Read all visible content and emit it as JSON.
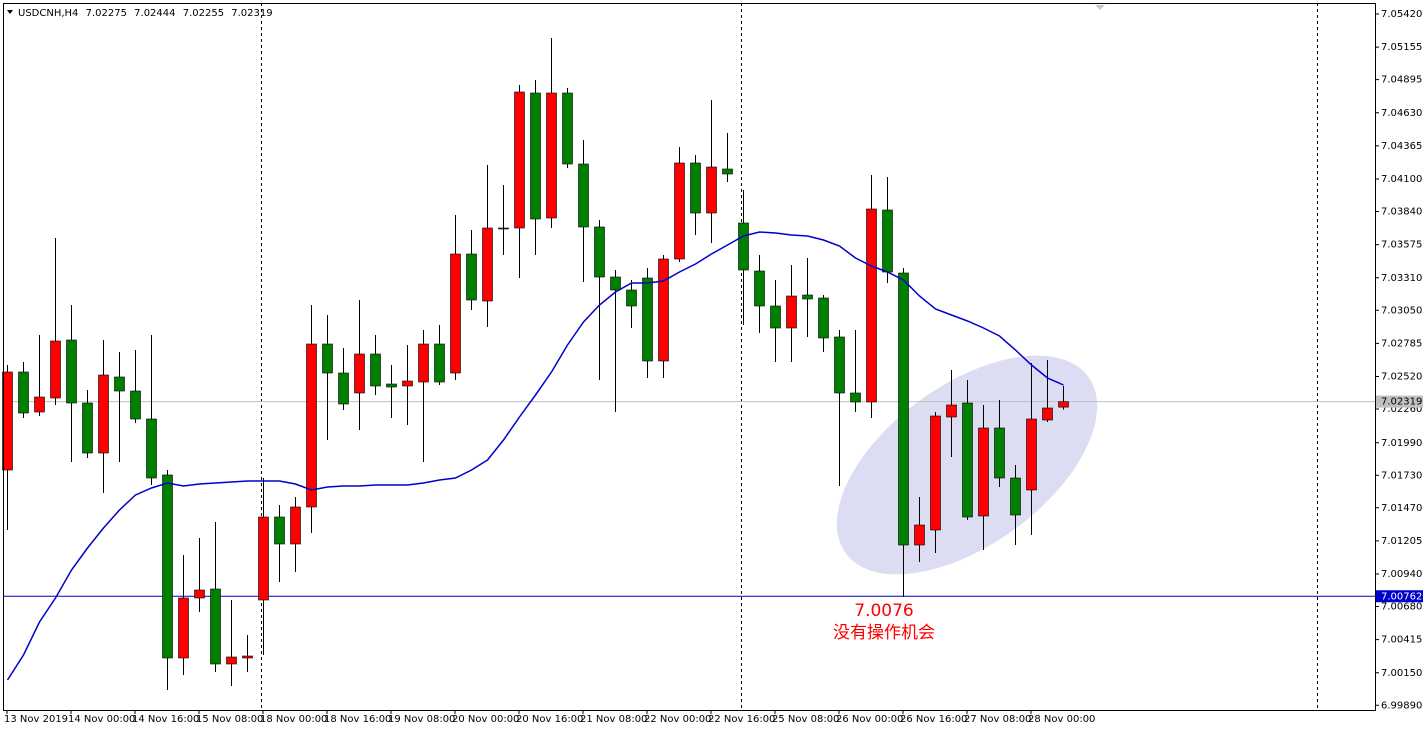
{
  "chart_data": {
    "type": "candlestick",
    "title": "USDCNH,H4",
    "categories": [
      "13 Nov 2019",
      null,
      null,
      null,
      "14 Nov 00:00",
      null,
      null,
      null,
      "14 Nov 16:00",
      null,
      null,
      null,
      "15 Nov 08:00",
      null,
      null,
      null,
      "18 Nov 00:00",
      null,
      null,
      null,
      "18 Nov 16:00",
      null,
      null,
      null,
      "19 Nov 08:00",
      null,
      null,
      null,
      "20 Nov 00:00",
      null,
      null,
      null,
      "20 Nov 16:00",
      null,
      null,
      null,
      "21 Nov 08:00",
      null,
      null,
      null,
      "22 Nov 00:00",
      null,
      null,
      null,
      "22 Nov 16:00",
      null,
      null,
      null,
      "25 Nov 08:00",
      null,
      null,
      null,
      "26 Nov 00:00",
      null,
      null,
      null,
      "26 Nov 16:00",
      null,
      null,
      null,
      "27 Nov 08:00",
      null,
      null,
      null,
      "28 Nov 00:00",
      null,
      null
    ],
    "open": [
      7.01772,
      7.02556,
      7.02236,
      7.02348,
      7.02812,
      7.02308,
      7.01908,
      7.02516,
      7.02404,
      7.0218,
      7.01732,
      7.00268,
      7.00748,
      7.0082,
      7.0022,
      7.00268,
      7.00732,
      7.01396,
      7.0118,
      7.01476,
      7.0278,
      7.02548,
      7.02388,
      7.027,
      7.0246,
      7.02444,
      7.02476,
      7.0278,
      7.02548,
      7.035,
      7.03124,
      7.03708,
      7.03708,
      7.04788,
      7.03788,
      7.04788,
      7.0422,
      7.03716,
      7.03316,
      7.03212,
      7.03308,
      7.02644,
      7.0346,
      7.04228,
      7.03828,
      7.0418,
      7.03748,
      7.03364,
      7.03084,
      7.02908,
      7.03172,
      7.03148,
      7.02836,
      7.02388,
      7.02316,
      7.03852,
      7.03348,
      7.01172,
      7.01292,
      7.02196,
      7.02308,
      7.01404,
      7.02108,
      7.01708,
      7.01612,
      7.02172,
      7.02275
    ],
    "high": [
      7.02612,
      7.02636,
      7.02852,
      7.03628,
      7.03092,
      7.02412,
      7.02812,
      7.02716,
      7.02732,
      7.02852,
      7.01772,
      7.01092,
      7.01228,
      7.01356,
      7.00732,
      7.00452,
      7.01708,
      7.01492,
      7.01556,
      7.03092,
      7.03012,
      7.02748,
      7.03132,
      7.02852,
      7.02612,
      7.02772,
      7.02892,
      7.02932,
      7.03812,
      7.03692,
      7.04212,
      7.04052,
      7.04852,
      7.04892,
      7.05228,
      7.04828,
      7.04412,
      7.03772,
      7.03372,
      7.03292,
      7.03388,
      7.03492,
      7.04356,
      7.04292,
      7.04732,
      7.04468,
      7.04012,
      7.03492,
      7.03292,
      7.03412,
      7.03468,
      7.03172,
      7.02892,
      7.02892,
      7.04132,
      7.04116,
      7.03388,
      7.01556,
      7.02236,
      7.02572,
      7.02492,
      7.02292,
      7.02332,
      7.01812,
      7.02628,
      7.02652,
      7.02444
    ],
    "low": [
      7.01292,
      7.02188,
      7.02204,
      7.02292,
      7.01836,
      7.01868,
      7.01588,
      7.01836,
      7.02148,
      7.01652,
      7.00012,
      7.00132,
      7.00636,
      7.00156,
      7.00044,
      7.00156,
      7.00292,
      7.00876,
      7.00956,
      7.01268,
      7.02012,
      7.02252,
      7.02092,
      7.02372,
      7.02188,
      7.02132,
      7.01836,
      7.02452,
      7.02492,
      7.03052,
      7.02916,
      7.03492,
      7.03308,
      7.03492,
      7.03708,
      7.04188,
      7.03276,
      7.02492,
      7.02236,
      7.02908,
      7.02508,
      7.02508,
      7.03436,
      7.03652,
      7.03588,
      7.04076,
      7.02932,
      7.02868,
      7.02636,
      7.02636,
      7.02836,
      7.02716,
      7.01644,
      7.02236,
      7.02188,
      7.03268,
      7.00756,
      7.01036,
      7.01108,
      7.01876,
      7.01372,
      7.01132,
      7.01636,
      7.01172,
      7.01252,
      7.02156,
      7.02255
    ],
    "close": [
      7.02556,
      7.02228,
      7.02356,
      7.02804,
      7.02308,
      7.01908,
      7.02532,
      7.02404,
      7.0218,
      7.01708,
      7.00268,
      7.00748,
      7.00812,
      7.0022,
      7.00276,
      7.00284,
      7.01396,
      7.0118,
      7.01476,
      7.0278,
      7.02548,
      7.023,
      7.027,
      7.02444,
      7.02436,
      7.02484,
      7.0278,
      7.02476,
      7.035,
      7.03132,
      7.03708,
      7.037,
      7.04796,
      7.0378,
      7.04788,
      7.0422,
      7.03716,
      7.03316,
      7.03212,
      7.03084,
      7.02644,
      7.0346,
      7.04228,
      7.03828,
      7.04196,
      7.0414,
      7.03372,
      7.03084,
      7.02908,
      7.03164,
      7.0314,
      7.02828,
      7.02388,
      7.02316,
      7.0386,
      7.03356,
      7.01172,
      7.01332,
      7.02204,
      7.02292,
      7.01396,
      7.02108,
      7.01708,
      7.01412,
      7.0218,
      7.02268,
      7.02319
    ],
    "up_color": "#ff0000",
    "down_color": "#008000",
    "ma": {
      "color": "#0000cc",
      "values": [
        7.00092,
        7.00292,
        7.00556,
        7.00748,
        7.00972,
        7.01148,
        7.01308,
        7.01452,
        7.01572,
        7.01628,
        7.01668,
        7.01644,
        7.0166,
        7.01668,
        7.01676,
        7.01684,
        7.01684,
        7.01684,
        7.0166,
        7.01612,
        7.01636,
        7.01644,
        7.01644,
        7.01652,
        7.01652,
        7.01652,
        7.01668,
        7.01692,
        7.01708,
        7.01772,
        7.01852,
        7.02012,
        7.02196,
        7.02372,
        7.02556,
        7.02772,
        7.02956,
        7.03092,
        7.03196,
        7.03268,
        7.03268,
        7.03284,
        7.03356,
        7.0342,
        7.035,
        7.03572,
        7.03644,
        7.03676,
        7.03668,
        7.03652,
        7.03644,
        7.03612,
        7.03564,
        7.03468,
        7.03404,
        7.03356,
        7.03292,
        7.03164,
        7.0306,
        7.03012,
        7.02964,
        7.02908,
        7.02844,
        7.02732,
        7.02612,
        7.02508,
        7.02452
      ]
    },
    "hline": {
      "value": 7.00762,
      "color": "#0000cc"
    },
    "annotation": {
      "lines": [
        "7.0076",
        "没有操作机会"
      ],
      "color": "#ff0000"
    },
    "ylim": [
      6.99852,
      7.05508
    ],
    "yticks": [
      {
        "value": 7.0542,
        "label": "7.05420"
      },
      7.05155,
      7.04895,
      {
        "value": 7.0463,
        "label": "7.04630"
      },
      7.04365,
      {
        "value": 7.041,
        "label": "7.04100"
      },
      {
        "value": 7.0384,
        "label": "7.03840"
      },
      7.03575,
      {
        "value": 7.0331,
        "label": "7.03310"
      },
      {
        "value": 7.0305,
        "label": "7.03050"
      },
      7.02785,
      {
        "value": 7.0252,
        "label": "7.02520"
      },
      {
        "value": 7.0226,
        "label": "7.02260"
      },
      {
        "value": 7.0199,
        "label": "7.01990"
      },
      {
        "value": 7.0173,
        "label": "7.01730"
      },
      {
        "value": 7.0147,
        "label": "7.01470"
      },
      7.01205,
      {
        "value": 7.0094,
        "label": "7.00940"
      },
      {
        "value": 7.0068,
        "label": "7.00680"
      },
      7.00415,
      {
        "value": 7.0015,
        "label": "7.00150"
      },
      {
        "value": 6.9989,
        "label": "6.99890"
      }
    ]
  }
}
